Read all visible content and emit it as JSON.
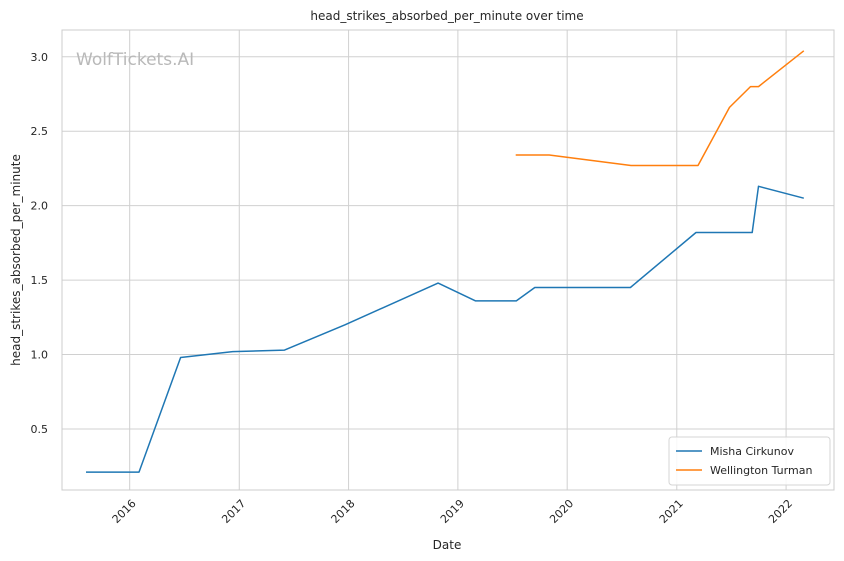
{
  "chart_data": {
    "type": "line",
    "title": "head_strikes_absorbed_per_minute over time",
    "xlabel": "Date",
    "ylabel": "head_strikes_absorbed_per_minute",
    "watermark": "WolfTickets.AI",
    "x_ticks": [
      "2016",
      "2017",
      "2018",
      "2019",
      "2020",
      "2021",
      "2022"
    ],
    "y_ticks": [
      "0.5",
      "1.0",
      "1.5",
      "2.0",
      "2.5",
      "3.0"
    ],
    "xlim": [
      "2015-05-20",
      "2022-06-10"
    ],
    "ylim": [
      0.09,
      3.18
    ],
    "grid": true,
    "legend_position": "bottom-right",
    "series": [
      {
        "name": "Misha Cirkunov",
        "color": "#1f77b4",
        "points": [
          [
            "2015-08-08",
            0.21
          ],
          [
            "2016-02-01",
            0.21
          ],
          [
            "2016-06-19",
            0.98
          ],
          [
            "2016-12-10",
            1.02
          ],
          [
            "2017-06-01",
            1.03
          ],
          [
            "2017-12-20",
            1.2
          ],
          [
            "2018-10-27",
            1.48
          ],
          [
            "2019-03-01",
            1.36
          ],
          [
            "2019-07-15",
            1.36
          ],
          [
            "2019-09-15",
            1.45
          ],
          [
            "2020-07-30",
            1.45
          ],
          [
            "2021-03-06",
            1.82
          ],
          [
            "2021-09-10",
            1.82
          ],
          [
            "2021-10-01",
            2.13
          ],
          [
            "2022-03-01",
            2.05
          ]
        ]
      },
      {
        "name": "Wellington Turman",
        "color": "#ff7f0e",
        "points": [
          [
            "2019-07-13",
            2.34
          ],
          [
            "2019-11-02",
            2.34
          ],
          [
            "2020-08-01",
            2.27
          ],
          [
            "2021-03-13",
            2.27
          ],
          [
            "2021-06-26",
            2.66
          ],
          [
            "2021-09-04",
            2.8
          ],
          [
            "2021-10-01",
            2.8
          ],
          [
            "2022-03-01",
            3.04
          ]
        ]
      }
    ]
  }
}
